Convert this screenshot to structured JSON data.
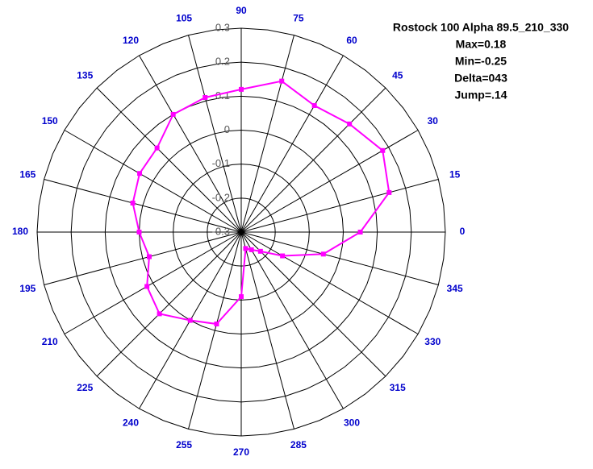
{
  "chart_data": {
    "type": "polar",
    "title": "Rostock 100 Alpha 89.5_210_330",
    "annotations": [
      "Max=0.18",
      "Min=-0.25",
      "Delta=043",
      "Jump=.14"
    ],
    "x": [
      0,
      15,
      30,
      45,
      60,
      75,
      90,
      105,
      120,
      135,
      150,
      165,
      180,
      195,
      210,
      225,
      240,
      255,
      270,
      285,
      300,
      315,
      330,
      345
    ],
    "series": [
      {
        "color": "#ff00ff",
        "values": [
          0.05,
          0.15,
          0.18,
          0.15,
          0.13,
          0.16,
          0.12,
          0.11,
          0.1,
          0.05,
          0.045,
          0.03,
          0.0,
          -0.02,
          0.02,
          0.04,
          0.0,
          -0.02,
          -0.11,
          -0.25,
          -0.24,
          -0.22,
          -0.16,
          -0.05
        ]
      }
    ],
    "xticks": [
      0,
      15,
      30,
      45,
      60,
      75,
      90,
      105,
      120,
      135,
      150,
      165,
      180,
      195,
      210,
      225,
      240,
      255,
      270,
      285,
      300,
      315,
      330,
      345
    ],
    "rlim": [
      -0.3,
      0.3
    ],
    "rticks": [
      0.3,
      0.2,
      0.1,
      0,
      -0.1,
      -0.2,
      -0.3
    ],
    "grid": true
  }
}
